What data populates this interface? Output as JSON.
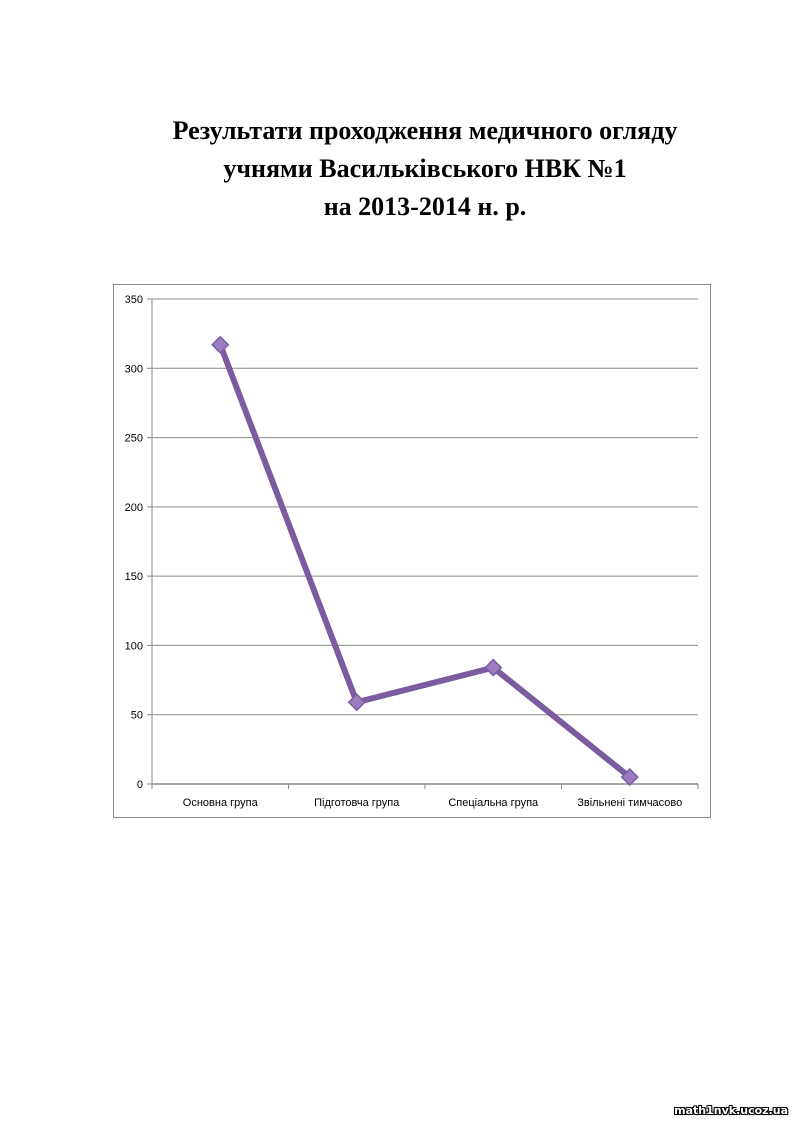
{
  "title_lines": [
    "Результати проходження медичного огляду",
    "учнями Васильківського НВК №1",
    "на 2013-2014 н. р."
  ],
  "chart_data": {
    "type": "line",
    "categories": [
      "Основна група",
      "Підготовча група",
      "Спеціальна група",
      "Звільнені тимчасово"
    ],
    "values": [
      317,
      59,
      84,
      5
    ],
    "ylim": [
      0,
      350
    ],
    "yticks": [
      0,
      50,
      100,
      150,
      200,
      250,
      300,
      350
    ],
    "grid": true,
    "legend": "none",
    "line_color": "#7b5c9e",
    "marker_color": "#9a7cc0"
  },
  "watermark": "math1nvk.ucoz.ua"
}
